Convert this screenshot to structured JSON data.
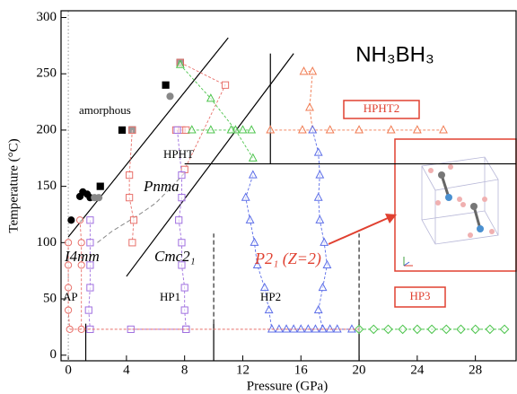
{
  "chart_data": {
    "type": "scatter",
    "x_label": "Pressure (GPa)",
    "y_label": "Temperature (°C)",
    "xlim": [
      -0.5,
      30.8
    ],
    "ylim": [
      -5,
      306
    ],
    "xticks": [
      0,
      4,
      8,
      12,
      16,
      20,
      24,
      28
    ],
    "yticks": [
      0,
      50,
      100,
      150,
      200,
      250,
      300
    ],
    "series": [
      {
        "color": "#000000",
        "marker": "square",
        "filled": true,
        "connect": false,
        "x": [
          2.2,
          3.7,
          4.4,
          6.7,
          7.7
        ],
        "values": [
          150,
          200,
          200,
          240,
          260
        ]
      },
      {
        "color": "#000000",
        "marker": "circle",
        "filled": true,
        "connect": false,
        "x": [
          0.2,
          0.8,
          1.0,
          1.3,
          1.5
        ],
        "values": [
          120,
          141,
          145,
          143,
          140
        ]
      },
      {
        "color": "#888888",
        "marker": "circle",
        "filled": true,
        "connect": false,
        "x": [
          1.8,
          2.1,
          7.0
        ],
        "values": [
          140,
          140,
          230
        ]
      },
      {
        "color": "#e8706a",
        "marker": "circle",
        "filled": false,
        "connect": true,
        "x": [
          0,
          0,
          0,
          0,
          0.1
        ],
        "values": [
          100,
          80,
          60,
          40,
          23
        ]
      },
      {
        "color": "#e8706a",
        "marker": "circle",
        "filled": false,
        "connect": true,
        "x": [
          0.8,
          0.9,
          0.9,
          0.9
        ],
        "values": [
          120,
          100,
          80,
          23
        ]
      },
      {
        "color": "#e8706a",
        "marker": "square",
        "filled": false,
        "connect": true,
        "x": [
          4.4,
          4.2,
          4.2,
          4.5,
          4.4
        ],
        "values": [
          200,
          160,
          140,
          120,
          100
        ]
      },
      {
        "color": "#e8706a",
        "marker": "square",
        "filled": false,
        "connect": true,
        "x": [
          7.7,
          10.8,
          8.0
        ],
        "values": [
          260,
          240,
          165
        ]
      },
      {
        "color": "#e8706a",
        "marker": "square",
        "filled": false,
        "connect": true,
        "x": [
          7.4,
          7.8,
          8.1
        ],
        "values": [
          200,
          200,
          200
        ]
      },
      {
        "color": "#4cc44c",
        "marker": "triangle",
        "filled": false,
        "connect": true,
        "x": [
          7.7,
          9.8,
          11.5,
          12.7
        ],
        "values": [
          258,
          228,
          200,
          175
        ]
      },
      {
        "color": "#4cc44c",
        "marker": "triangle",
        "filled": false,
        "connect": true,
        "x": [
          8.5,
          9.8,
          11.2,
          12.0,
          12.6
        ],
        "values": [
          200,
          200,
          200,
          200,
          200
        ]
      },
      {
        "color": "#f07a50",
        "marker": "triangle",
        "filled": false,
        "connect": true,
        "x": [
          13.9,
          16.1,
          18.0,
          20.0,
          22.2,
          24.0,
          25.8
        ],
        "values": [
          200,
          200,
          200,
          200,
          200,
          200,
          200
        ]
      },
      {
        "color": "#f07a50",
        "marker": "triangle",
        "filled": false,
        "connect": true,
        "x": [
          16.2,
          16.8,
          16.6,
          16.8
        ],
        "values": [
          252,
          252,
          220,
          200
        ]
      },
      {
        "color": "#a070e0",
        "marker": "square",
        "filled": false,
        "connect": true,
        "x": [
          7.5,
          7.8,
          7.8,
          7.6,
          7.8,
          7.8,
          8.0,
          8.0,
          8.1
        ],
        "values": [
          200,
          160,
          140,
          120,
          100,
          80,
          60,
          40,
          23
        ]
      },
      {
        "color": "#a070e0",
        "marker": "square",
        "filled": false,
        "connect": true,
        "x": [
          1.5,
          1.5,
          1.5,
          1.5,
          1.4,
          1.5
        ],
        "values": [
          120,
          100,
          80,
          60,
          40,
          23
        ]
      },
      {
        "color": "#a070e0",
        "marker": "square",
        "filled": false,
        "connect": true,
        "x": [
          4.3,
          8.1
        ],
        "values": [
          23,
          23
        ]
      },
      {
        "color": "#5c6ee8",
        "marker": "triangle",
        "filled": false,
        "connect": true,
        "x": [
          12.7,
          12.2,
          12.5,
          12.8,
          13.0,
          13.5,
          13.8,
          14.0
        ],
        "values": [
          160,
          140,
          120,
          100,
          80,
          60,
          40,
          23
        ]
      },
      {
        "color": "#5c6ee8",
        "marker": "triangle",
        "filled": false,
        "connect": true,
        "x": [
          14.5,
          15,
          15.5,
          16,
          16.5,
          17,
          17.5,
          18,
          18.5,
          19.5
        ],
        "values": [
          23,
          23,
          23,
          23,
          23,
          23,
          23,
          23,
          23,
          23
        ]
      },
      {
        "color": "#5c6ee8",
        "marker": "triangle",
        "filled": false,
        "connect": true,
        "x": [
          16.8,
          17.2,
          17.3,
          17.2,
          17.3,
          17.6,
          17.8,
          17.5,
          17.2,
          17.5
        ],
        "values": [
          200,
          180,
          160,
          140,
          120,
          100,
          80,
          60,
          40,
          23
        ]
      },
      {
        "color": "#4cc44c",
        "marker": "diamond",
        "filled": false,
        "connect": true,
        "x": [
          20,
          21,
          22,
          23,
          24,
          25,
          26,
          27,
          28,
          29,
          30
        ],
        "values": [
          23,
          23,
          23,
          23,
          23,
          23,
          23,
          23,
          23,
          23,
          23
        ]
      },
      {
        "color": "#e8706a",
        "marker": "none",
        "filled": false,
        "connect": true,
        "x": [
          0.1,
          20
        ],
        "values": [
          23,
          23
        ]
      }
    ],
    "lines": [
      {
        "color": "#000000",
        "style": "solid",
        "x": [
          0,
          11
        ],
        "values": [
          105,
          282
        ]
      },
      {
        "color": "#000000",
        "style": "solid",
        "x": [
          4,
          15.5
        ],
        "values": [
          70,
          268
        ]
      },
      {
        "color": "#000000",
        "style": "solid",
        "x": [
          8,
          30.8
        ],
        "values": [
          170,
          170
        ]
      },
      {
        "color": "#000000",
        "style": "solid",
        "x": [
          13.9,
          13.9
        ],
        "values": [
          170,
          268
        ]
      },
      {
        "color": "#000000",
        "style": "solid",
        "x": [
          10,
          10
        ],
        "values": [
          -5,
          28
        ]
      },
      {
        "color": "#000000",
        "style": "dashed",
        "x": [
          10,
          10
        ],
        "values": [
          28,
          108
        ]
      },
      {
        "color": "#000000",
        "style": "solid",
        "x": [
          20,
          20
        ],
        "values": [
          -5,
          28
        ]
      },
      {
        "color": "#000000",
        "style": "dashed",
        "x": [
          20,
          20
        ],
        "values": [
          28,
          108
        ]
      },
      {
        "color": "#000000",
        "style": "solid",
        "x": [
          1.2,
          1.2
        ],
        "values": [
          -5,
          28
        ]
      },
      {
        "color": "#888888",
        "style": "dashed",
        "x": [
          2,
          3,
          4,
          5,
          6,
          7,
          8
        ],
        "values": [
          100,
          110,
          118,
          126,
          135,
          148,
          162
        ]
      },
      {
        "color": "#999999",
        "style": "dotted",
        "x": [
          0,
          0
        ],
        "values": [
          -5,
          306
        ]
      }
    ],
    "annotations": [
      "NH₃BH₃",
      "amorphous",
      "HPHT",
      "HPHT2",
      "Pnma",
      "I4mm",
      "Cmc2₁",
      "P2₁ (Z=2)",
      "AP",
      "HP1",
      "HP2",
      "HP3"
    ]
  }
}
